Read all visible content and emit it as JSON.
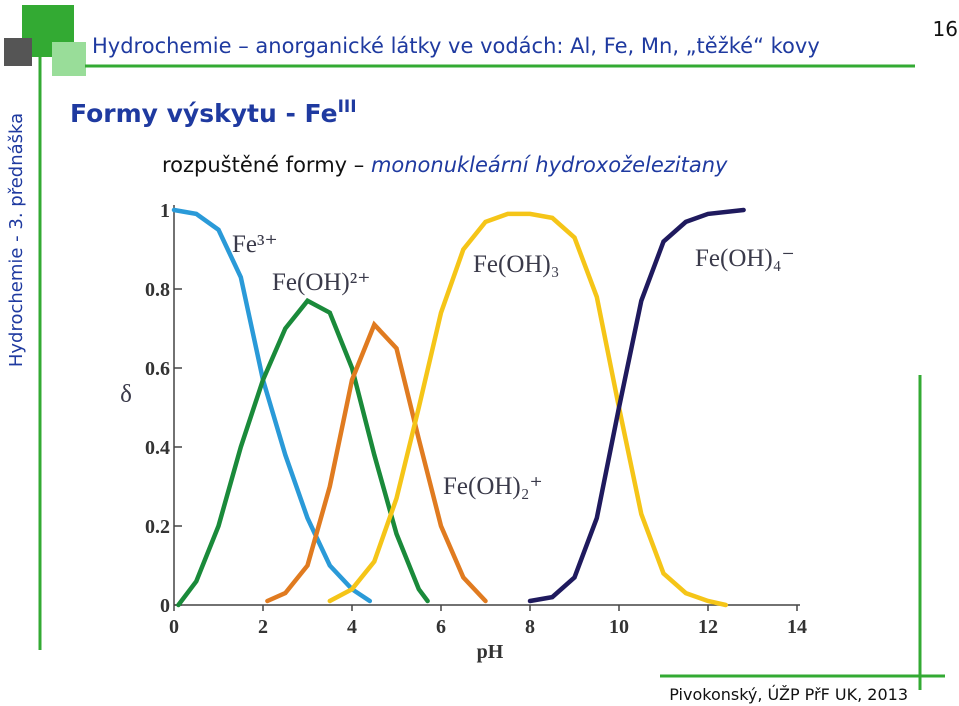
{
  "header": {
    "title": "Hydrochemie – anorganické látky ve vodách: Al, Fe, Mn, „těžké“ kovy",
    "page": "16",
    "side": "Hydrochemie - 3. přednáška"
  },
  "heading": {
    "text": "Formy výskytu - Fe",
    "sup": "III"
  },
  "subheading": {
    "plain": "rozpuštěné formy – ",
    "italic": "mononukleární hydroxoželezitany"
  },
  "footer": "Pivokonský, ÚŽP PřF UK, 2013",
  "chart_data": {
    "type": "line",
    "x_label": "pH",
    "y_label": "δ",
    "xlim": [
      0,
      14
    ],
    "xticks": [
      0,
      2,
      4,
      6,
      8,
      10,
      12,
      14
    ],
    "ylim": [
      0,
      1
    ],
    "yticks": [
      0,
      0.2,
      0.4,
      0.6,
      0.8,
      1
    ],
    "series": [
      {
        "name": "Fe³⁺",
        "color": "#2a9ad8",
        "x": [
          0,
          0.5,
          1,
          1.5,
          2,
          2.5,
          3,
          3.5,
          4,
          4.4
        ],
        "values": [
          1.0,
          0.99,
          0.95,
          0.83,
          0.57,
          0.38,
          0.22,
          0.1,
          0.04,
          0.01
        ]
      },
      {
        "name": "Fe(OH)²⁺",
        "color": "#1a8a3a",
        "x": [
          0.1,
          0.5,
          1,
          1.5,
          2,
          2.5,
          3,
          3.5,
          4,
          4.5,
          5,
          5.5,
          5.7
        ],
        "values": [
          0,
          0.06,
          0.2,
          0.4,
          0.57,
          0.7,
          0.77,
          0.74,
          0.6,
          0.38,
          0.18,
          0.04,
          0.01
        ]
      },
      {
        "name": "Fe(OH)₂⁺",
        "color": "#e07b20",
        "x": [
          2.1,
          2.5,
          3,
          3.5,
          4,
          4.5,
          5,
          5.5,
          6,
          6.5,
          7
        ],
        "values": [
          0.01,
          0.03,
          0.1,
          0.3,
          0.57,
          0.71,
          0.65,
          0.42,
          0.2,
          0.07,
          0.01
        ]
      },
      {
        "name": "Fe(OH)₃",
        "color": "#f5c518",
        "x": [
          3.5,
          4,
          4.5,
          5,
          5.5,
          6,
          6.5,
          7,
          7.5,
          8,
          8.5,
          9,
          9.5,
          10,
          10.5,
          11,
          11.5,
          12,
          12.4
        ],
        "values": [
          0.01,
          0.04,
          0.11,
          0.27,
          0.5,
          0.74,
          0.9,
          0.97,
          0.99,
          0.99,
          0.98,
          0.93,
          0.78,
          0.5,
          0.23,
          0.08,
          0.03,
          0.01,
          0
        ]
      },
      {
        "name": "Fe(OH)₄⁻",
        "color": "#1f1a5e",
        "x": [
          8,
          8.5,
          9,
          9.5,
          10,
          10.5,
          11,
          11.5,
          12,
          12.8
        ],
        "values": [
          0.01,
          0.02,
          0.07,
          0.22,
          0.5,
          0.77,
          0.92,
          0.97,
          0.99,
          1.0
        ]
      }
    ]
  }
}
